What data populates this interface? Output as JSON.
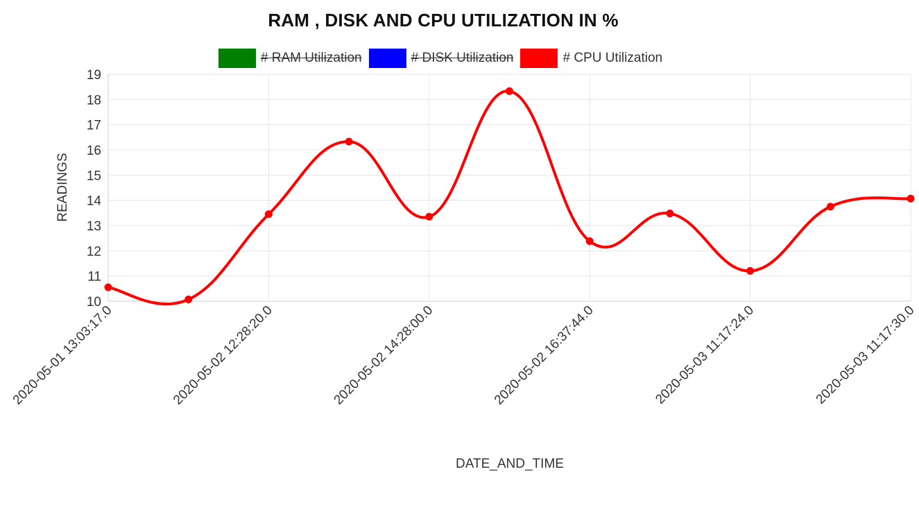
{
  "chart_data": {
    "type": "line",
    "title": "RAM , DISK AND CPU UTILIZATION IN %",
    "xlabel": "DATE_AND_TIME",
    "ylabel": "READINGS",
    "ylim": [
      10,
      19
    ],
    "y_ticks": [
      "10",
      "11",
      "12",
      "13",
      "14",
      "15",
      "16",
      "17",
      "18",
      "19"
    ],
    "x_tick_labels": [
      "2020-05-01 13:03:17.0",
      "2020-05-02 12:28:20.0",
      "2020-05-02 14:28:00.0",
      "2020-05-02 16:37:44.0",
      "2020-05-03 11:17:24.0",
      "2020-05-03 11:17:30.0"
    ],
    "point_count": 11,
    "grid": true,
    "legend_position": "top",
    "legend": [
      {
        "label": "# RAM Utilization",
        "color": "#008000",
        "hidden": true
      },
      {
        "label": "# DISK Utilization",
        "color": "#0000ff",
        "hidden": true
      },
      {
        "label": "# CPU Utilization",
        "color": "#ff0000",
        "hidden": false
      }
    ],
    "series": [
      {
        "name": "# CPU Utilization",
        "color": "#ff0000",
        "values": [
          10.55,
          10.07,
          13.45,
          16.33,
          13.35,
          18.33,
          12.38,
          13.48,
          11.2,
          13.75,
          14.07
        ]
      }
    ]
  }
}
